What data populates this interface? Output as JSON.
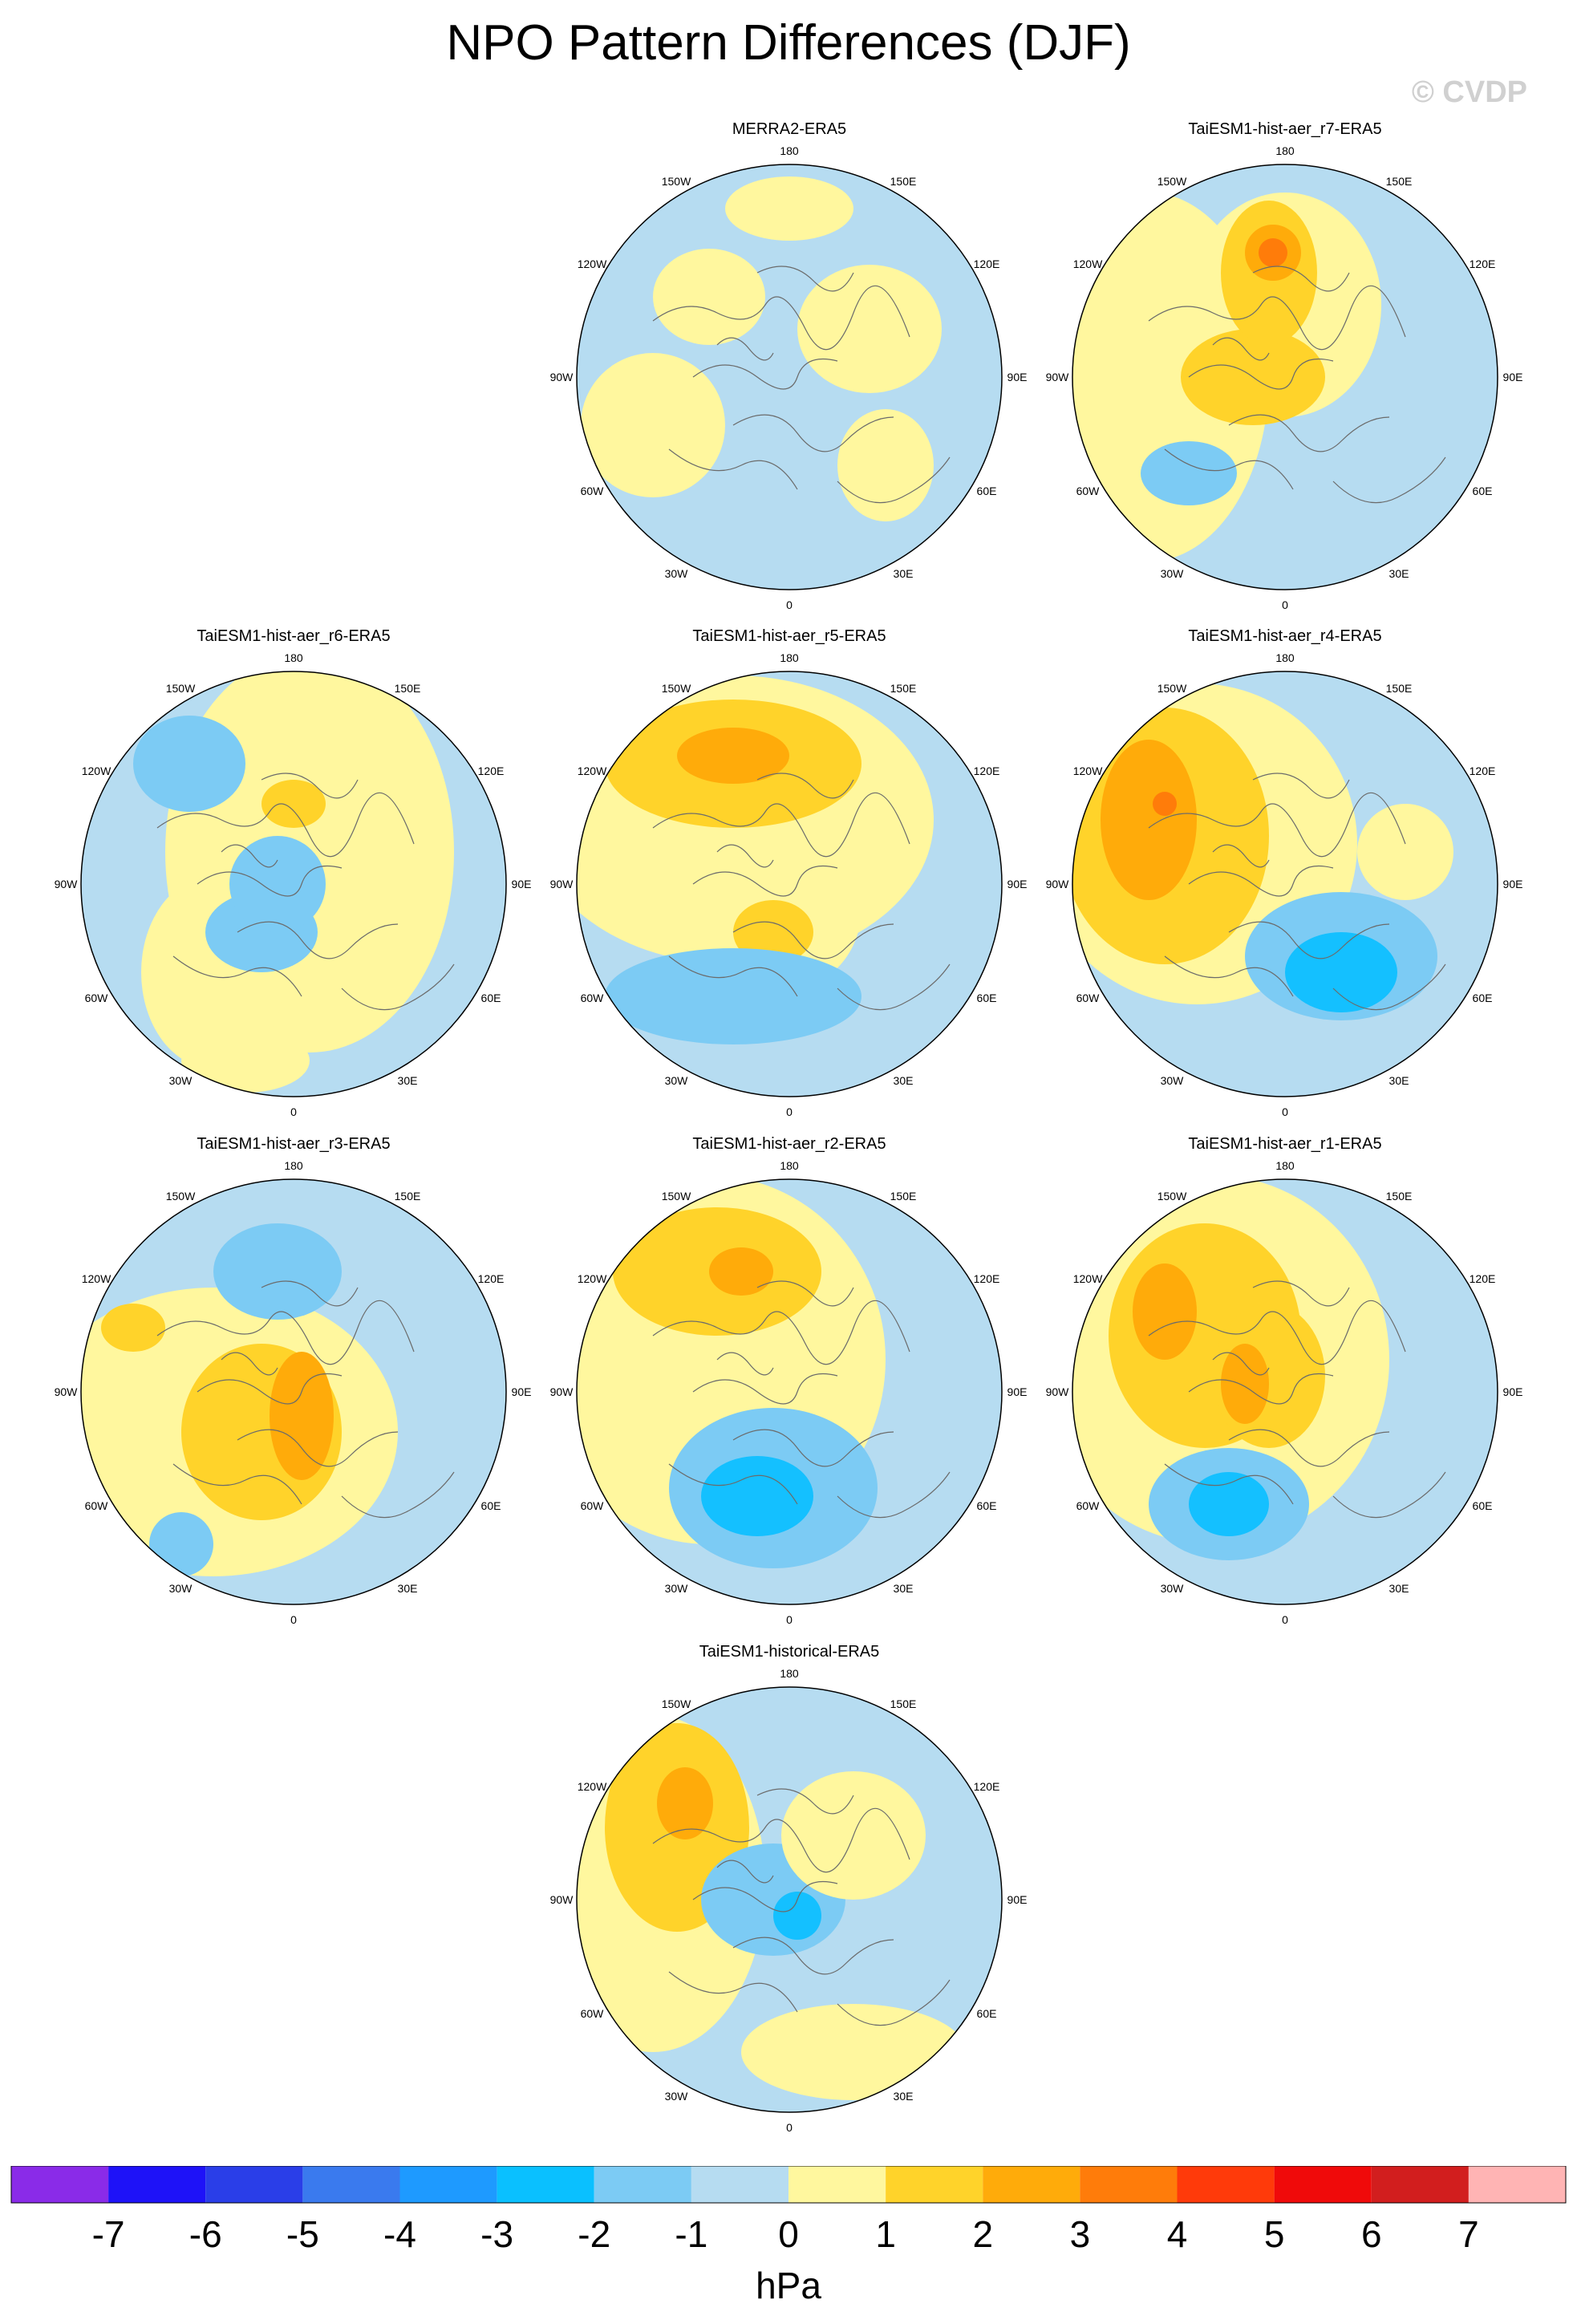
{
  "title": "NPO Pattern Differences (DJF)",
  "watermark": "© CVDP",
  "lon_labels": [
    "180",
    "150E",
    "120E",
    "90E",
    "60E",
    "30E",
    "0",
    "30W",
    "60W",
    "90W",
    "120W",
    "150W"
  ],
  "colors": {
    "bin_m1_0": "#b6dcf1",
    "bin_0_1": "#fff79e",
    "bin_1_2": "#ffd32a",
    "bin_2_3": "#ffab0a",
    "bin_3_4": "#ff7c0a",
    "bin_m2_m1": "#7ccbf4",
    "bin_m3_m2": "#14c0ff",
    "coast": "#6b6b6b"
  },
  "panels": [
    {
      "title": "MERRA2-ERA5"
    },
    {
      "title": "TaiESM1-hist-aer_r7-ERA5"
    },
    {
      "title": "TaiESM1-hist-aer_r6-ERA5"
    },
    {
      "title": "TaiESM1-hist-aer_r5-ERA5"
    },
    {
      "title": "TaiESM1-hist-aer_r4-ERA5"
    },
    {
      "title": "TaiESM1-hist-aer_r3-ERA5"
    },
    {
      "title": "TaiESM1-hist-aer_r2-ERA5"
    },
    {
      "title": "TaiESM1-hist-aer_r1-ERA5"
    },
    {
      "title": "TaiESM1-historical-ERA5"
    }
  ],
  "colorbar": {
    "unit": "hPa",
    "labels": [
      "-7",
      "-6",
      "-5",
      "-4",
      "-3",
      "-2",
      "-1",
      "0",
      "1",
      "2",
      "3",
      "4",
      "5",
      "6",
      "7"
    ],
    "colors": [
      "#8a2be8",
      "#1e12f8",
      "#2a3ee8",
      "#3a7aee",
      "#1e9aff",
      "#0ac0ff",
      "#7ccbf4",
      "#b6dcf1",
      "#fff79e",
      "#ffd32a",
      "#ffab0a",
      "#ff7c0a",
      "#ff3a0a",
      "#f00a0a",
      "#d21e1e",
      "#ffb4b4"
    ]
  }
}
